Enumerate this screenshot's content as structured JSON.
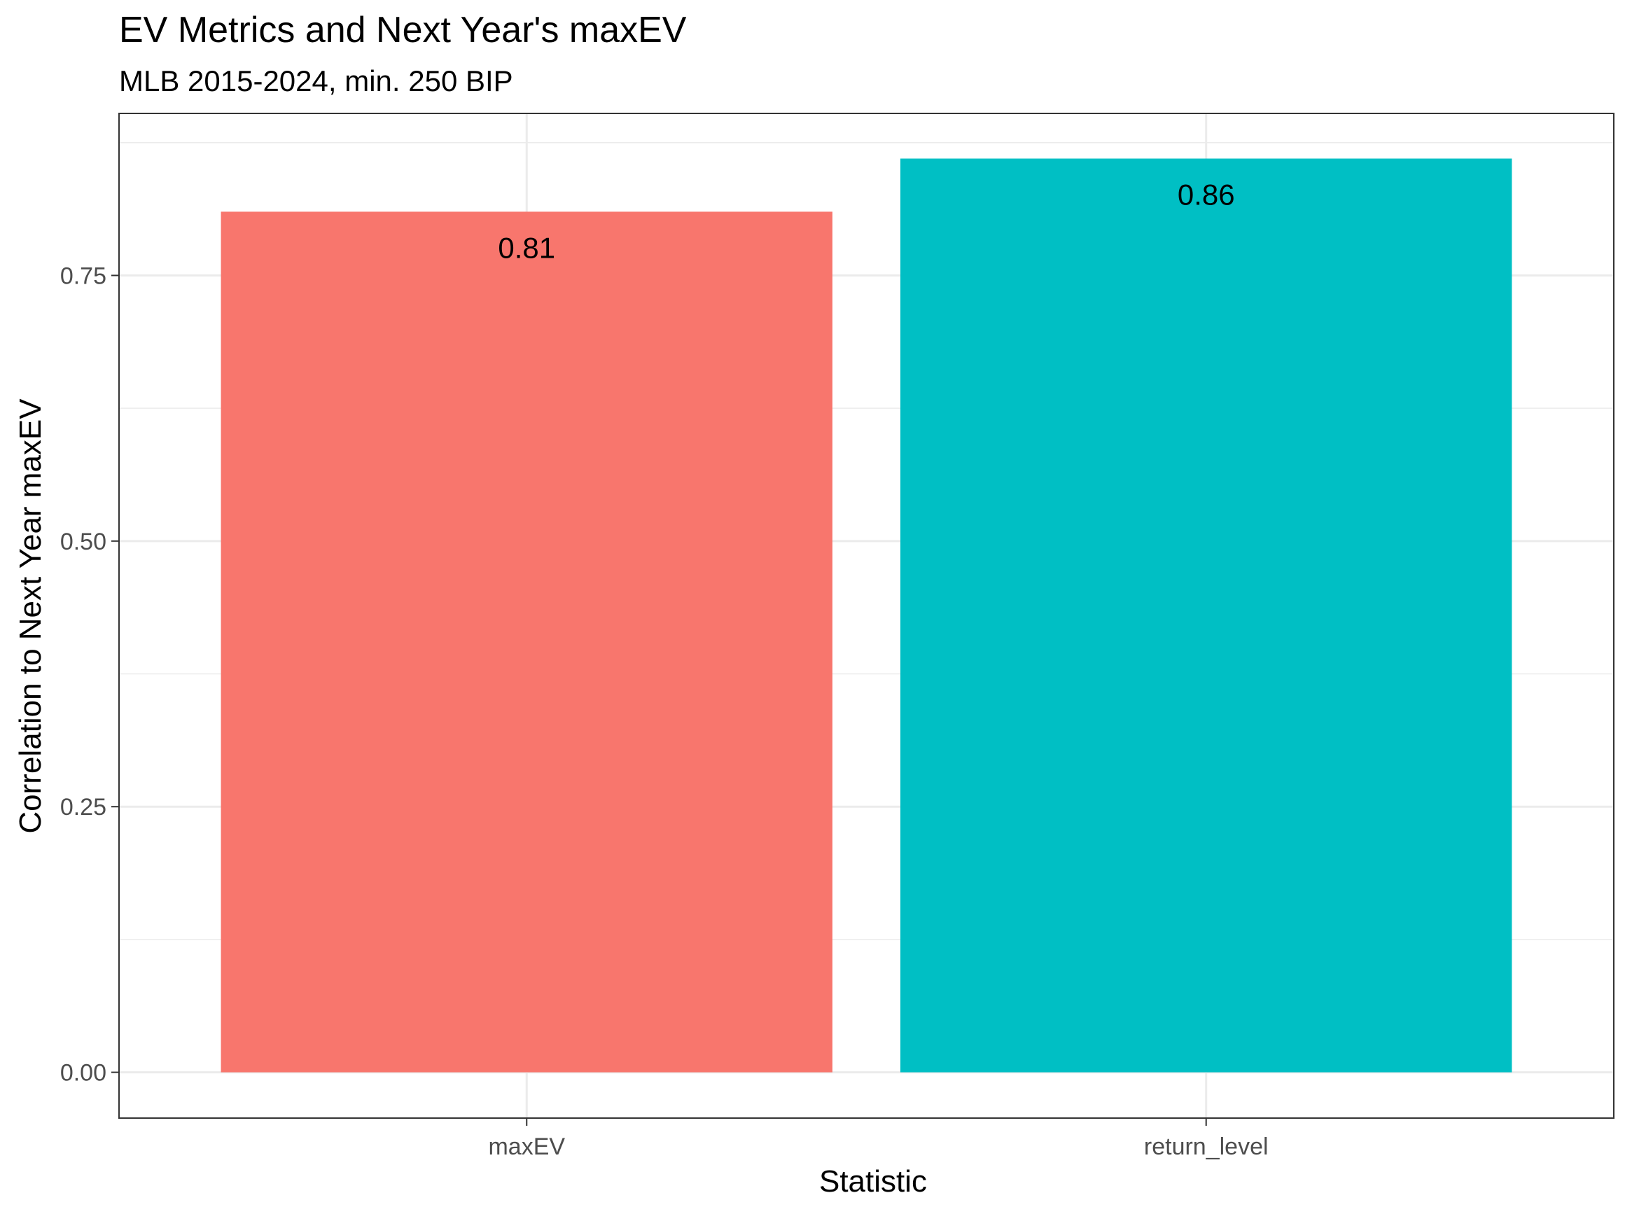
{
  "chart_data": {
    "type": "bar",
    "title": "EV Metrics and Next Year's maxEV",
    "subtitle": "MLB 2015-2024, min. 250 BIP",
    "xlabel": "Statistic",
    "ylabel": "Correlation to Next Year maxEV",
    "categories": [
      "maxEV",
      "return_level"
    ],
    "values": [
      0.81,
      0.86
    ],
    "data_labels": [
      "0.81",
      "0.86"
    ],
    "colors": [
      "#F8766D",
      "#00BFC4"
    ],
    "ylim": [
      -0.0431,
      0.9025
    ],
    "yticks": [
      0.0,
      0.25,
      0.5,
      0.75
    ],
    "ytick_labels": [
      "0.00",
      "0.25",
      "0.50",
      "0.75"
    ],
    "grid": true,
    "legend": "none"
  }
}
